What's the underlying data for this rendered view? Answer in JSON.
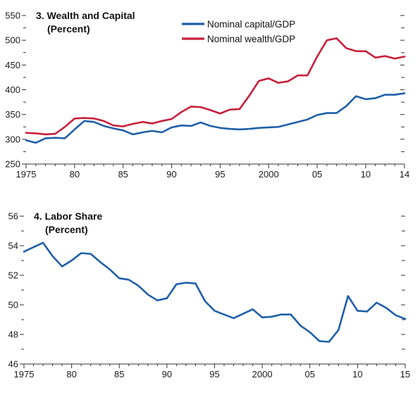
{
  "chart_data": [
    {
      "type": "line",
      "title": "3. Wealth and Capital",
      "subtitle": "(Percent)",
      "ylim": [
        250,
        550
      ],
      "yticks": [
        250,
        300,
        350,
        400,
        450,
        500,
        550
      ],
      "xlim": [
        1975,
        2014
      ],
      "xticks": [
        {
          "value": 1975,
          "label": "1975"
        },
        {
          "value": 1980,
          "label": "80"
        },
        {
          "value": 1985,
          "label": "85"
        },
        {
          "value": 1990,
          "label": "90"
        },
        {
          "value": 1995,
          "label": "95"
        },
        {
          "value": 2000,
          "label": "2000"
        },
        {
          "value": 2005,
          "label": "05"
        },
        {
          "value": 2010,
          "label": "10"
        },
        {
          "value": 2014,
          "label": "14"
        }
      ],
      "legend_position": "top-center",
      "x": [
        1975,
        1976,
        1977,
        1978,
        1979,
        1980,
        1981,
        1982,
        1983,
        1984,
        1985,
        1986,
        1987,
        1988,
        1989,
        1990,
        1991,
        1992,
        1993,
        1994,
        1995,
        1996,
        1997,
        1998,
        1999,
        2000,
        2001,
        2002,
        2003,
        2004,
        2005,
        2006,
        2007,
        2008,
        2009,
        2010,
        2011,
        2012,
        2013,
        2014
      ],
      "series": [
        {
          "name": "Nominal capital/GDP",
          "color": "#1f5fa8",
          "values": [
            298,
            293,
            302,
            303,
            302,
            320,
            337,
            335,
            327,
            322,
            318,
            310,
            314,
            317,
            314,
            324,
            328,
            327,
            334,
            327,
            323,
            321,
            320,
            321,
            323,
            324,
            325,
            330,
            335,
            340,
            349,
            353,
            353,
            367,
            387,
            381,
            383,
            390,
            390,
            393
          ]
        },
        {
          "name": "Nominal wealth/GDP",
          "color": "#c8203c",
          "values": [
            313,
            312,
            310,
            311,
            325,
            342,
            343,
            342,
            337,
            328,
            326,
            331,
            335,
            332,
            337,
            341,
            355,
            366,
            365,
            359,
            352,
            360,
            361,
            388,
            418,
            423,
            414,
            417,
            429,
            429,
            467,
            500,
            504,
            484,
            478,
            478,
            465,
            468,
            463,
            467
          ]
        }
      ]
    },
    {
      "type": "line",
      "title": "4. Labor Share",
      "subtitle": "(Percent)",
      "ylim": [
        46,
        56
      ],
      "yticks": [
        46,
        48,
        50,
        52,
        54,
        56
      ],
      "xlim": [
        1975,
        2015
      ],
      "xticks": [
        {
          "value": 1975,
          "label": "1975"
        },
        {
          "value": 1980,
          "label": "80"
        },
        {
          "value": 1985,
          "label": "85"
        },
        {
          "value": 1990,
          "label": "90"
        },
        {
          "value": 1995,
          "label": "95"
        },
        {
          "value": 2000,
          "label": "2000"
        },
        {
          "value": 2005,
          "label": "05"
        },
        {
          "value": 2010,
          "label": "10"
        },
        {
          "value": 2015,
          "label": "15"
        }
      ],
      "x": [
        1975,
        1976,
        1977,
        1978,
        1979,
        1980,
        1981,
        1982,
        1983,
        1984,
        1985,
        1986,
        1987,
        1988,
        1989,
        1990,
        1991,
        1992,
        1993,
        1994,
        1995,
        1996,
        1997,
        1998,
        1999,
        2000,
        2001,
        2002,
        2003,
        2004,
        2005,
        2006,
        2007,
        2008,
        2009,
        2010,
        2011,
        2012,
        2013,
        2014,
        2015
      ],
      "series": [
        {
          "color": "#1f5fa8",
          "values": [
            53.6,
            53.9,
            54.2,
            53.3,
            52.6,
            53.0,
            53.5,
            53.45,
            52.9,
            52.4,
            51.8,
            51.7,
            51.3,
            50.7,
            50.3,
            50.45,
            51.4,
            51.5,
            51.45,
            50.25,
            49.6,
            49.35,
            49.1,
            49.4,
            49.7,
            49.15,
            49.2,
            49.35,
            49.35,
            48.6,
            48.15,
            47.55,
            47.5,
            48.3,
            50.6,
            49.6,
            49.55,
            50.15,
            49.8,
            49.3,
            49.05
          ]
        }
      ]
    }
  ]
}
